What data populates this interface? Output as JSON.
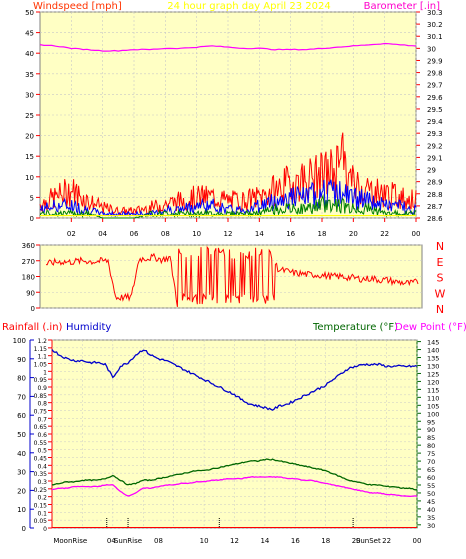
{
  "header": {
    "title": "24 hour graph day   April 23 2024",
    "wind_label": "Windspeed [mph]",
    "baro_label": "Barometer [.in]"
  },
  "colors": {
    "plot_bg": "#ffffc4",
    "grid": "#c8c8c8",
    "wind_label": "#ff3300",
    "wind_gust": "#ff0000",
    "wind_avg": "#0000ff",
    "wind_low": "#008000",
    "wind_min": "#ffff00",
    "baro": "#ff00ff",
    "direction": "#ff0000",
    "rain": "#ff0000",
    "humidity": "#0000cc",
    "temperature": "#006600",
    "dewpoint": "#ff00ff",
    "title": "#ffff00",
    "tick": "#ff0000"
  },
  "chart_data": [
    {
      "type": "line",
      "title": "24 hour graph day   April 23 2024",
      "xlabel": "",
      "ylabel": "Windspeed [mph]",
      "y2label": "Barometer [.in]",
      "x_ticks": [
        "02",
        "04",
        "06",
        "08",
        "10",
        "12",
        "14",
        "16",
        "18",
        "20",
        "22",
        "00"
      ],
      "ylim": [
        0,
        50
      ],
      "y_ticks": [
        0,
        5,
        10,
        15,
        20,
        25,
        30,
        35,
        40,
        45,
        50
      ],
      "y2lim": [
        28.6,
        30.3
      ],
      "y2_ticks": [
        "28.6",
        "28.7",
        "28.8",
        "28.9",
        "29",
        "29.1",
        "29.2",
        "29.3",
        "29.4",
        "29.5",
        "29.6",
        "29.7",
        "29.8",
        "29.9",
        "30",
        "30.1",
        "30.2",
        "30.3"
      ],
      "grid": true,
      "series": [
        {
          "name": "Barometer",
          "axis": "right",
          "x": [
            0,
            1,
            2,
            3,
            4,
            5,
            6,
            7,
            8,
            9,
            10,
            11,
            12,
            13,
            14,
            15,
            16,
            17,
            18,
            19,
            20,
            21,
            22,
            23,
            24
          ],
          "values": [
            30.03,
            30.02,
            30.0,
            29.99,
            29.98,
            29.98,
            29.99,
            29.99,
            30.0,
            30.0,
            30.01,
            30.02,
            30.01,
            30.0,
            30.0,
            29.99,
            29.99,
            29.99,
            30.0,
            30.01,
            30.02,
            30.03,
            30.04,
            30.03,
            30.02
          ]
        },
        {
          "x": [
            0,
            1,
            2,
            3,
            4,
            5,
            6,
            7,
            8,
            9,
            10,
            11,
            12,
            13,
            14,
            15,
            16,
            17,
            18,
            19,
            20,
            21,
            22,
            23,
            24
          ],
          "values": [
            4,
            6,
            8,
            5,
            3,
            2,
            2,
            3,
            4,
            5,
            6,
            6,
            5,
            5,
            6,
            8,
            10,
            11,
            12,
            14,
            10,
            8,
            7,
            6,
            5
          ]
        },
        {
          "x": [
            0,
            1,
            2,
            3,
            4,
            5,
            6,
            7,
            8,
            9,
            10,
            11,
            12,
            13,
            14,
            15,
            16,
            17,
            18,
            19,
            20,
            21,
            22,
            23,
            24
          ],
          "values": [
            2,
            3,
            3,
            2,
            1,
            1,
            1,
            1,
            2,
            2,
            3,
            3,
            2,
            2,
            3,
            4,
            5,
            5,
            6,
            6,
            5,
            4,
            3,
            3,
            2
          ]
        },
        {
          "x": [
            0,
            1,
            2,
            3,
            4,
            5,
            6,
            7,
            8,
            9,
            10,
            11,
            12,
            13,
            14,
            15,
            16,
            17,
            18,
            19,
            20,
            21,
            22,
            23,
            24
          ],
          "values": [
            1,
            1,
            1,
            1,
            0,
            0,
            0,
            1,
            1,
            1,
            1,
            1,
            1,
            1,
            1,
            2,
            2,
            2,
            3,
            3,
            2,
            2,
            1,
            1,
            1
          ]
        }
      ]
    },
    {
      "type": "line",
      "title": "",
      "x_ticks": [
        "02",
        "04",
        "06",
        "08",
        "10",
        "12",
        "14",
        "16",
        "18",
        "20",
        "22",
        "00"
      ],
      "ylim": [
        0,
        360
      ],
      "y_ticks": [
        0,
        90,
        180,
        270,
        360
      ],
      "right_labels": [
        "N",
        "W",
        "S",
        "E",
        "N"
      ],
      "series": [
        {
          "x": [
            0,
            0.5,
            1,
            1.5,
            2,
            2.5,
            3,
            3.5,
            4,
            4.5,
            5,
            5.5,
            6,
            6.5,
            7,
            7.5,
            8,
            8.5,
            9,
            9.5,
            10,
            10.5,
            11,
            11.5,
            12,
            12.5,
            13,
            13.5,
            14,
            14.5,
            15,
            15.5,
            16,
            16.5,
            17,
            17.5,
            18,
            18.5,
            19,
            19.5,
            20,
            20.5,
            21,
            21.5,
            22,
            22.5,
            23,
            23.5,
            24
          ],
          "values": [
            250,
            260,
            265,
            262,
            268,
            270,
            265,
            268,
            270,
            60,
            60,
            60,
            280,
            285,
            290,
            275,
            290,
            10,
            300,
            280,
            150,
            320,
            30,
            330,
            20,
            310,
            40,
            320,
            30,
            300,
            220,
            210,
            200,
            195,
            190,
            190,
            185,
            180,
            180,
            175,
            170,
            165,
            170,
            160,
            160,
            150,
            145,
            140,
            150
          ]
        }
      ]
    },
    {
      "type": "line",
      "title": "",
      "ylabel": "Rainfall (.in)",
      "y2label": "Humidity",
      "y3label": "Temperature (°F)",
      "y4label": "Dew Point (°F)",
      "x_ticks": [
        "02",
        "04",
        "06",
        "08",
        "10",
        "12",
        "14",
        "16",
        "18",
        "20",
        "22",
        "00"
      ],
      "hum_ticks": [
        0,
        10,
        20,
        30,
        40,
        50,
        60,
        70,
        80,
        90,
        100
      ],
      "rain_ticks": [
        "0",
        "0.05",
        "0.1",
        "0.15",
        "0.2",
        "0.25",
        "0.3",
        "0.35",
        "0.4",
        "0.45",
        "0.5",
        "0.55",
        "0.6",
        "0.65",
        "0.7",
        "0.75",
        "0.8",
        "0.85",
        "0.9",
        "0.95",
        "1",
        "1.05",
        "1.1",
        "1.15",
        "1.2"
      ],
      "temp_ticks": [
        30,
        35,
        40,
        45,
        50,
        55,
        60,
        65,
        70,
        75,
        80,
        85,
        90,
        95,
        100,
        105,
        110,
        115,
        120,
        125,
        130,
        135,
        140,
        145
      ],
      "hum_lim": [
        0,
        100
      ],
      "rain_lim": [
        0,
        1.2
      ],
      "temp_lim": [
        28,
        146
      ],
      "markers": [
        "MoonRise",
        "04",
        "SunRise",
        "08",
        "10",
        "12",
        "14",
        "16",
        "18",
        "20",
        "SunSet",
        "22",
        "00"
      ],
      "series": [
        {
          "name": "Humidity",
          "axis": "humidity",
          "x": [
            0,
            0.5,
            1,
            1.5,
            2,
            2.5,
            3,
            3.5,
            4,
            4.5,
            5,
            5.5,
            6,
            6.5,
            7,
            7.5,
            8,
            8.5,
            9,
            9.5,
            10,
            10.5,
            11,
            11.5,
            12,
            12.5,
            13,
            13.5,
            14,
            14.5,
            15,
            15.5,
            16,
            16.5,
            17,
            17.5,
            18,
            18.5,
            19,
            19.5,
            20,
            20.5,
            21,
            21.5,
            22,
            22.5,
            23,
            23.5,
            24
          ],
          "values": [
            95,
            92,
            90,
            89,
            89,
            88,
            88,
            87,
            80,
            86,
            88,
            92,
            95,
            92,
            90,
            89,
            87,
            85,
            83,
            81,
            79,
            77,
            75,
            73,
            71,
            68,
            66,
            65,
            64,
            63,
            65,
            66,
            68,
            70,
            72,
            74,
            76,
            79,
            82,
            85,
            86,
            87,
            87,
            87,
            86,
            86,
            86,
            86,
            86
          ]
        },
        {
          "name": "Temperature (°F)",
          "axis": "temperature",
          "x": [
            0,
            0.5,
            1,
            1.5,
            2,
            2.5,
            3,
            3.5,
            4,
            4.5,
            5,
            5.5,
            6,
            6.5,
            7,
            7.5,
            8,
            8.5,
            9,
            9.5,
            10,
            10.5,
            11,
            11.5,
            12,
            12.5,
            13,
            13.5,
            14,
            14.5,
            15,
            15.5,
            16,
            16.5,
            17,
            17.5,
            18,
            18.5,
            19,
            19.5,
            20,
            20.5,
            21,
            21.5,
            22,
            22.5,
            23,
            23.5,
            24
          ],
          "values": [
            55,
            56,
            57,
            57,
            58,
            58,
            58,
            59,
            61,
            58,
            55,
            56,
            58,
            58,
            59,
            60,
            61,
            62,
            63,
            64,
            64,
            65,
            66,
            67,
            68,
            69,
            70,
            70,
            71,
            71,
            70,
            69,
            68,
            67,
            66,
            65,
            64,
            62,
            60,
            58,
            57,
            56,
            55,
            55,
            54,
            54,
            53,
            53,
            52
          ]
        },
        {
          "name": "Dew Point (°F)",
          "axis": "temperature",
          "x": [
            0,
            0.5,
            1,
            1.5,
            2,
            2.5,
            3,
            3.5,
            4,
            4.5,
            5,
            5.5,
            6,
            6.5,
            7,
            7.5,
            8,
            8.5,
            9,
            9.5,
            10,
            10.5,
            11,
            11.5,
            12,
            12.5,
            13,
            13.5,
            14,
            14.5,
            15,
            15.5,
            16,
            16.5,
            17,
            17.5,
            18,
            18.5,
            19,
            19.5,
            20,
            20.5,
            21,
            21.5,
            22,
            22.5,
            23,
            23.5,
            24
          ],
          "values": [
            52,
            53,
            53,
            54,
            54,
            54,
            54,
            55,
            55,
            51,
            48,
            50,
            53,
            53,
            54,
            55,
            55,
            56,
            56,
            57,
            57,
            58,
            58,
            59,
            59,
            59,
            60,
            60,
            60,
            60,
            60,
            59,
            59,
            58,
            58,
            57,
            56,
            55,
            54,
            53,
            52,
            51,
            50,
            50,
            49,
            49,
            48,
            48,
            48
          ]
        },
        {
          "name": "Rainfall (.in)",
          "axis": "rain",
          "x": [
            0,
            24
          ],
          "values": [
            0,
            0
          ]
        }
      ]
    }
  ]
}
